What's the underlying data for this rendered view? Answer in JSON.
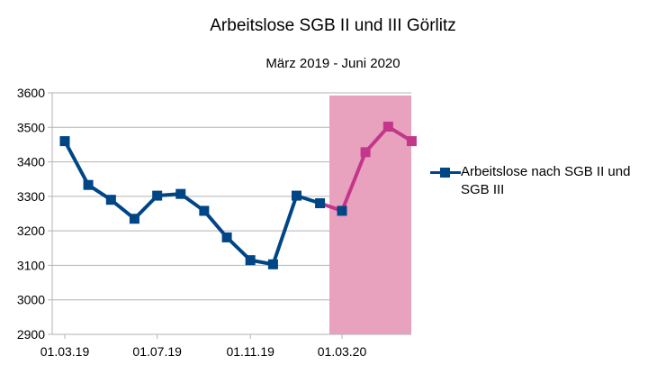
{
  "chart_data": {
    "type": "line",
    "title": "Arbeitslose SGB II und III Görlitz",
    "subtitle": "März 2019 - Juni 2020",
    "x": [
      "2019-03-01",
      "2019-04-01",
      "2019-05-01",
      "2019-06-01",
      "2019-07-01",
      "2019-08-01",
      "2019-09-01",
      "2019-10-01",
      "2019-11-01",
      "2019-12-01",
      "2020-01-01",
      "2020-02-01",
      "2020-03-01",
      "2020-04-01",
      "2020-05-01",
      "2020-06-01"
    ],
    "x_tick_labels": [
      "01.03.19",
      "01.07.19",
      "01.11.19",
      "01.03.20"
    ],
    "y_tick_labels": [
      "2900",
      "3000",
      "3100",
      "3200",
      "3300",
      "3400",
      "3500",
      "3600"
    ],
    "ylim": [
      2900,
      3600
    ],
    "series": [
      {
        "name": "Arbeitslose nach SGB II und SGB III",
        "values": [
          3460,
          3333,
          3290,
          3235,
          3302,
          3307,
          3258,
          3181,
          3115,
          3103,
          3302,
          3280,
          3258,
          3428,
          3502,
          3460
        ]
      }
    ],
    "highlight": {
      "from": "2020-03-01",
      "to": "2020-06-01",
      "color": "#e8a2be"
    },
    "grid": true,
    "legend_position": "right",
    "colors": {
      "main": "#004586",
      "highlight": "#c2378a"
    }
  }
}
